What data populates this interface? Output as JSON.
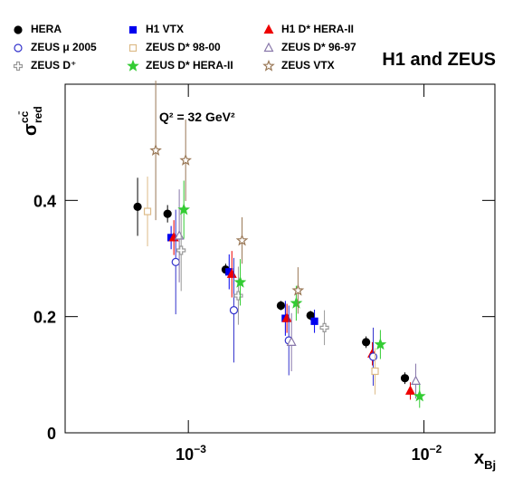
{
  "chart_data": {
    "type": "scatter",
    "title": "H1 and ZEUS",
    "annotation": "Q² = 32 GeV²",
    "x_label": {
      "base": "x",
      "sub": "Bj"
    },
    "y_label": {
      "base": "σ",
      "sup": "cc̄",
      "sub": "red"
    },
    "xlog": true,
    "xlim": [
      0.0003,
      0.02
    ],
    "ylim": [
      0,
      0.6
    ],
    "xticks": [
      {
        "value": 0.001,
        "label": "10−3"
      },
      {
        "value": 0.01,
        "label": "10−2"
      }
    ],
    "yticks": [
      0,
      0.2,
      0.4
    ],
    "grid": false,
    "series": [
      {
        "name": "HERA",
        "color": "#000000",
        "marker": "circle",
        "x": [
          0.000609,
          0.000816,
          0.00144,
          0.00247,
          0.0033,
          0.00568,
          0.0083
        ],
        "values": [
          0.389,
          0.377,
          0.281,
          0.219,
          0.202,
          0.156,
          0.094
        ],
        "errors": [
          0.05,
          0.015,
          0.01,
          0.008,
          0.008,
          0.01,
          0.01
        ]
      },
      {
        "name": "H1 VTX",
        "color": "#0000ee",
        "marker": "square",
        "x": [
          0.000845,
          0.00149,
          0.00258,
          0.00343
        ],
        "values": [
          0.336,
          0.277,
          0.197,
          0.192
        ],
        "errors": [
          0.02,
          0.03,
          0.03,
          0.02
        ]
      },
      {
        "name": "H1 D* HERA-II",
        "color": "#ee0000",
        "marker": "triangle",
        "x": [
          0.000868,
          0.00153,
          0.00262,
          0.00604,
          0.00875
        ],
        "values": [
          0.336,
          0.273,
          0.197,
          0.136,
          0.072
        ],
        "errors": [
          0.03,
          0.04,
          0.025,
          0.02,
          0.015
        ]
      },
      {
        "name": "ZEUS μ 2005",
        "color": "#3333cc",
        "marker": "open-circle",
        "x": [
          0.000884,
          0.00156,
          0.00267,
          0.00609
        ],
        "values": [
          0.294,
          0.211,
          0.159,
          0.131
        ],
        "errors": [
          0.09,
          0.09,
          0.06,
          0.05
        ]
      },
      {
        "name": "ZEUS D* 98-00",
        "color": "#ddbb88",
        "marker": "open-square",
        "x": [
          0.000671,
          0.0062
        ],
        "values": [
          0.381,
          0.106
        ],
        "errors": [
          0.06,
          0.04
        ]
      },
      {
        "name": "ZEUS D* 96-97",
        "color": "#8877aa",
        "marker": "open-triangle",
        "x": [
          0.000915,
          0.00274,
          0.00923
        ],
        "values": [
          0.339,
          0.156,
          0.089
        ],
        "errors": [
          0.08,
          0.05,
          0.03
        ]
      },
      {
        "name": "ZEUS D⁺",
        "color": "#999999",
        "marker": "open-cross",
        "x": [
          0.000932,
          0.00163,
          0.00378
        ],
        "values": [
          0.314,
          0.236,
          0.181
        ],
        "errors": [
          0.07,
          0.05,
          0.03
        ]
      },
      {
        "name": "ZEUS D* HERA-II",
        "color": "#33cc33",
        "marker": "star",
        "x": [
          0.000957,
          0.00166,
          0.00287,
          0.00653,
          0.00958
        ],
        "values": [
          0.384,
          0.259,
          0.223,
          0.152,
          0.063
        ],
        "errors": [
          0.05,
          0.04,
          0.03,
          0.025,
          0.02
        ]
      },
      {
        "name": "ZEUS VTX",
        "color": "#997755",
        "marker": "open-star",
        "x": [
          0.000727,
          0.000974,
          0.00169,
          0.00292
        ],
        "values": [
          0.486,
          0.469,
          0.331,
          0.245
        ],
        "errors": [
          0.12,
          0.07,
          0.04,
          0.04
        ]
      }
    ]
  }
}
